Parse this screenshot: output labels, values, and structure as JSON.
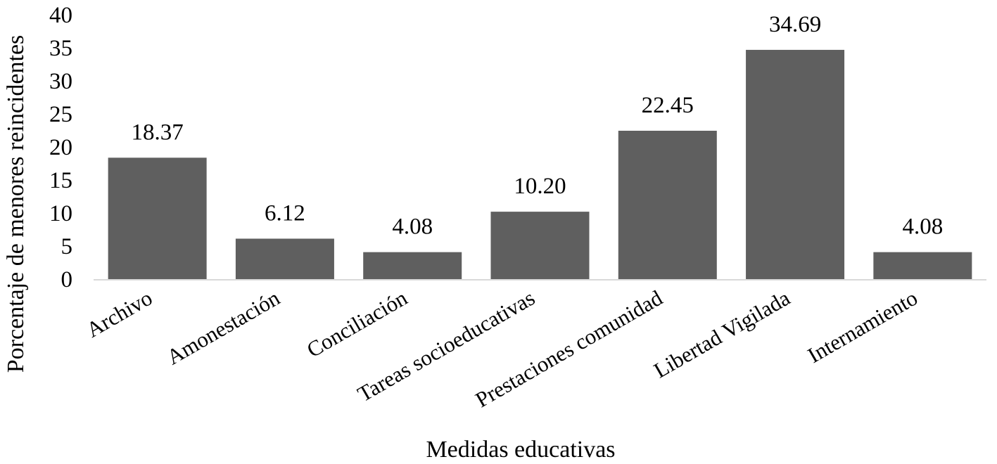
{
  "colors": {
    "bar": "#5f5f5f",
    "axis": "#d9d9d9",
    "text": "#000000",
    "background": "#ffffff"
  },
  "chart_data": {
    "type": "bar",
    "title": "",
    "xlabel": "Medidas educativas",
    "ylabel": "Porcentaje de menores reincidentes",
    "categories": [
      "Archivo",
      "Amonestación",
      "Conciliación",
      "Tareas socioeducativas",
      "Prestaciones comunidad",
      "Libertad Vigilada",
      "Internamiento"
    ],
    "values": [
      18.37,
      6.12,
      4.08,
      10.2,
      22.45,
      34.69,
      4.08
    ],
    "data_labels": [
      "18.37",
      "6.12",
      "4.08",
      "10.20",
      "22.45",
      "34.69",
      "4.08"
    ],
    "ylim": [
      0,
      40
    ],
    "yticks": [
      "0",
      "5",
      "10",
      "15",
      "20",
      "25",
      "30",
      "35",
      "40"
    ],
    "grid": false,
    "legend": null
  }
}
